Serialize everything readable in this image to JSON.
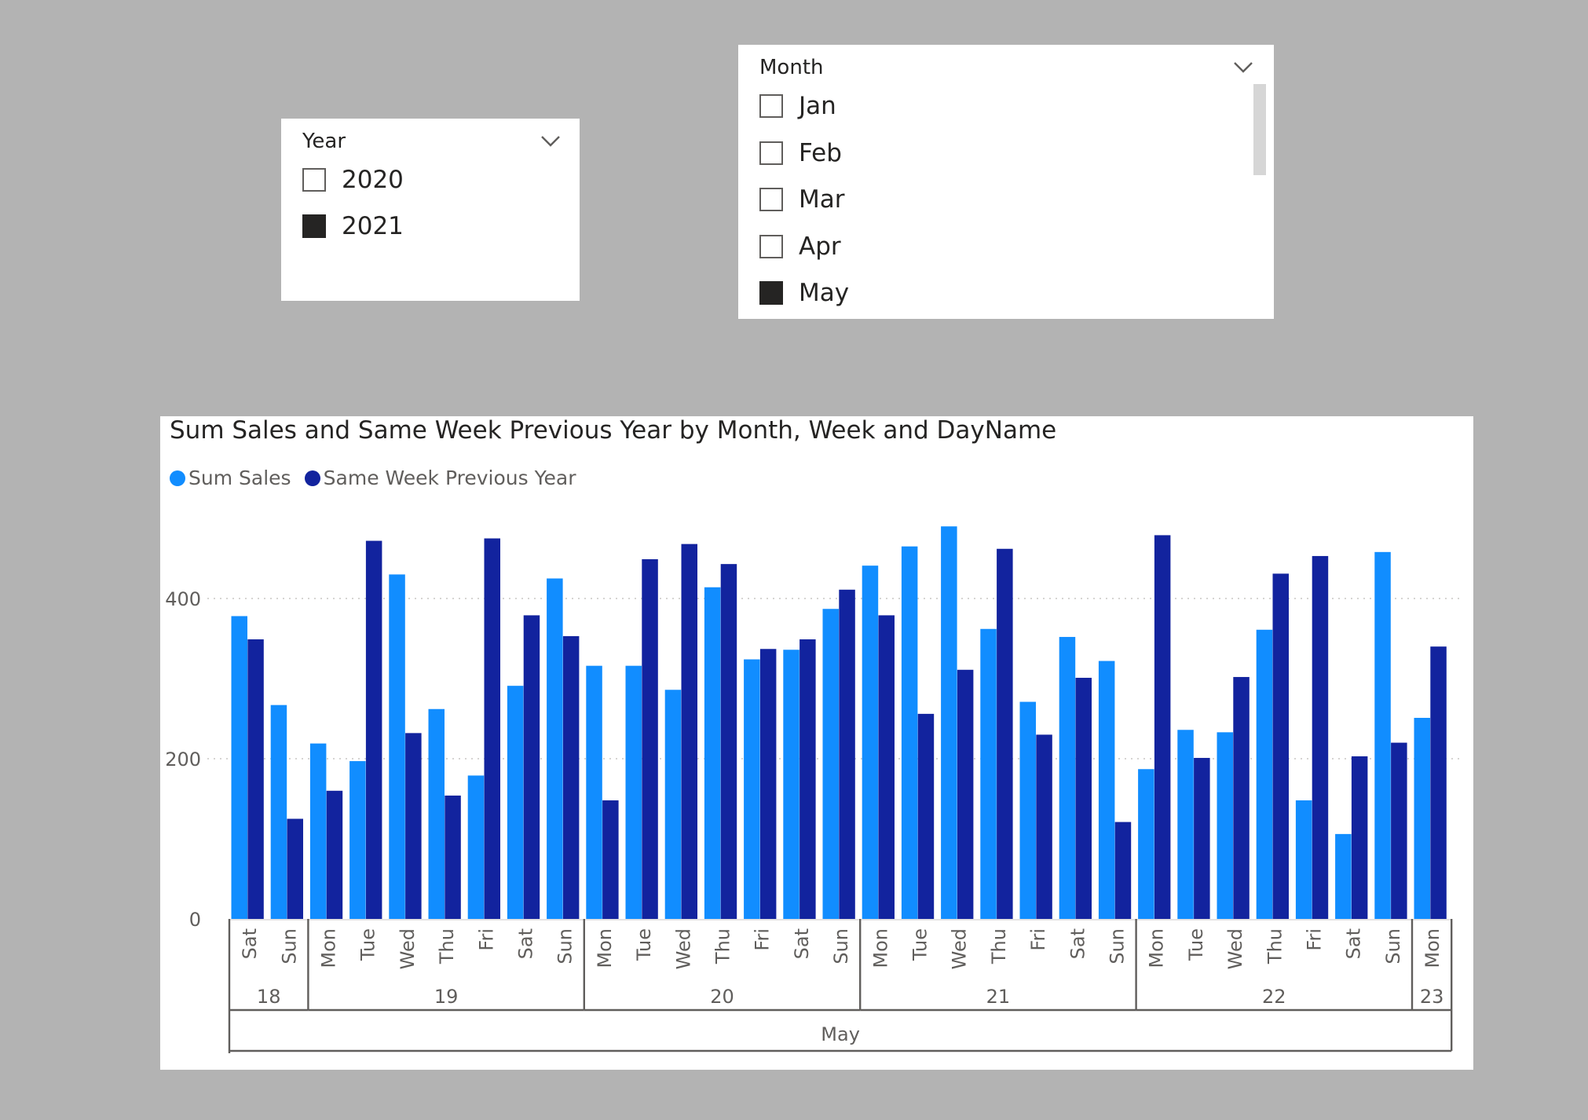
{
  "year_slicer": {
    "title": "Year",
    "chevron_icon": "chevron-down-icon",
    "items": [
      {
        "label": "2020",
        "checked": false
      },
      {
        "label": "2021",
        "checked": true
      }
    ]
  },
  "month_slicer": {
    "title": "Month",
    "chevron_icon": "chevron-down-icon",
    "items": [
      {
        "label": "Jan",
        "checked": false
      },
      {
        "label": "Feb",
        "checked": false
      },
      {
        "label": "Mar",
        "checked": false
      },
      {
        "label": "Apr",
        "checked": false
      },
      {
        "label": "May",
        "checked": true
      }
    ]
  },
  "colors": {
    "sum_sales": "#118dff",
    "prev_year": "#12239e",
    "checked": "#252423",
    "axis_text": "#605e5c"
  },
  "chart_data": {
    "type": "bar",
    "title": "Sum Sales and Same Week Previous Year by Month, Week and DayName",
    "legend_position": "top-left",
    "grid": true,
    "ylim": [
      0,
      500
    ],
    "yticks": [
      0,
      200,
      400
    ],
    "categories": [
      "Sat",
      "Sun",
      "Mon",
      "Tue",
      "Wed",
      "Thu",
      "Fri",
      "Sat",
      "Sun",
      "Mon",
      "Tue",
      "Wed",
      "Thu",
      "Fri",
      "Sat",
      "Sun",
      "Mon",
      "Tue",
      "Wed",
      "Thu",
      "Fri",
      "Sat",
      "Sun",
      "Mon",
      "Tue",
      "Wed",
      "Thu",
      "Fri",
      "Sat",
      "Sun",
      "Mon"
    ],
    "weeks": [
      {
        "label": "18",
        "count": 2
      },
      {
        "label": "19",
        "count": 7
      },
      {
        "label": "20",
        "count": 7
      },
      {
        "label": "21",
        "count": 7
      },
      {
        "label": "22",
        "count": 7
      },
      {
        "label": "23",
        "count": 1
      }
    ],
    "month_label": "May",
    "series": [
      {
        "name": "Sum Sales",
        "values": [
          378,
          267,
          219,
          197,
          430,
          262,
          179,
          291,
          425,
          316,
          316,
          286,
          414,
          324,
          336,
          387,
          441,
          465,
          490,
          362,
          271,
          352,
          322,
          187,
          236,
          233,
          361,
          148,
          106,
          458,
          251
        ]
      },
      {
        "name": "Same Week Previous Year",
        "values": [
          349,
          125,
          160,
          472,
          232,
          154,
          475,
          379,
          353,
          148,
          449,
          468,
          443,
          337,
          349,
          411,
          379,
          256,
          311,
          462,
          230,
          301,
          121,
          479,
          201,
          302,
          431,
          453,
          203,
          220,
          340
        ]
      }
    ]
  }
}
